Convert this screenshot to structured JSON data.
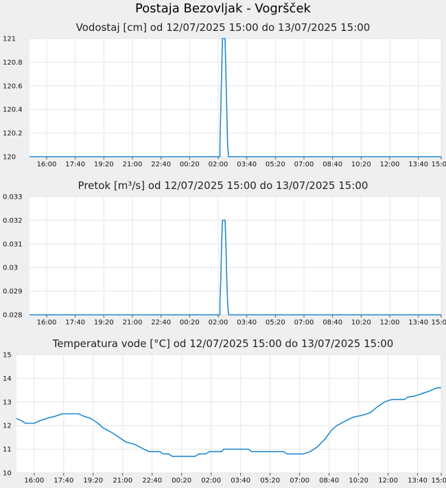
{
  "page": {
    "title": "Postaja Bezovljak - Vogršček"
  },
  "chart_data": [
    {
      "type": "line",
      "title": "Vodostaj [cm] od 12/07/2025 15:00 do 13/07/2025 15:00",
      "xlabel": "",
      "ylabel": "",
      "x_ticks": [
        "16:00",
        "17:40",
        "19:20",
        "21:00",
        "22:40",
        "00:20",
        "02:00",
        "03:40",
        "05:20",
        "07:00",
        "08:40",
        "10:20",
        "12:00",
        "13:40",
        "15:00"
      ],
      "y_ticks": [
        "120",
        "120.2",
        "120.4",
        "120.6",
        "120.8",
        "121"
      ],
      "ylim": [
        120,
        121
      ],
      "xlim_hours": [
        0,
        24
      ],
      "grid": true,
      "color": "#1e88d0",
      "series": [
        {
          "points": [
            [
              0,
              120
            ],
            [
              11.1,
              120
            ],
            [
              11.1,
              120.1
            ],
            [
              11.15,
              120.4
            ],
            [
              11.2,
              120.7
            ],
            [
              11.25,
              121
            ],
            [
              11.4,
              121
            ],
            [
              11.45,
              120.7
            ],
            [
              11.5,
              120.4
            ],
            [
              11.55,
              120.1
            ],
            [
              11.6,
              120
            ],
            [
              24,
              120
            ]
          ]
        }
      ]
    },
    {
      "type": "line",
      "title": "Pretok [m³/s] od 12/07/2025 15:00 do 13/07/2025 15:00",
      "xlabel": "",
      "ylabel": "",
      "x_ticks": [
        "16:00",
        "17:40",
        "19:20",
        "21:00",
        "22:40",
        "00:20",
        "02:00",
        "03:40",
        "05:20",
        "07:00",
        "08:40",
        "10:20",
        "12:00",
        "13:40",
        "15:00"
      ],
      "y_ticks": [
        "0.028",
        "0.029",
        "0.03",
        "0.031",
        "0.032",
        "0.033"
      ],
      "ylim": [
        0.028,
        0.033
      ],
      "xlim_hours": [
        0,
        24
      ],
      "grid": true,
      "color": "#1e88d0",
      "series": [
        {
          "points": [
            [
              0,
              0.028
            ],
            [
              11.1,
              0.028
            ],
            [
              11.1,
              0.0285
            ],
            [
              11.15,
              0.0295
            ],
            [
              11.2,
              0.031
            ],
            [
              11.25,
              0.032
            ],
            [
              11.4,
              0.032
            ],
            [
              11.45,
              0.031
            ],
            [
              11.5,
              0.0295
            ],
            [
              11.55,
              0.0285
            ],
            [
              11.6,
              0.028
            ],
            [
              24,
              0.028
            ]
          ]
        }
      ]
    },
    {
      "type": "line",
      "title": "Temperatura vode [°C] od 12/07/2025 15:00 do 13/07/2025 15:00",
      "xlabel": "",
      "ylabel": "",
      "x_ticks": [
        "16:00",
        "17:40",
        "19:20",
        "21:00",
        "22:40",
        "00:20",
        "02:00",
        "03:40",
        "05:20",
        "07:00",
        "08:40",
        "10:20",
        "12:00",
        "13:40",
        "15:00"
      ],
      "y_ticks": [
        "10",
        "11",
        "12",
        "13",
        "14",
        "15"
      ],
      "ylim": [
        10,
        15
      ],
      "xlim_hours": [
        0,
        24
      ],
      "grid": true,
      "color": "#1e88d0",
      "series": [
        {
          "points": [
            [
              0,
              12.3
            ],
            [
              0.3,
              12.2
            ],
            [
              0.5,
              12.1
            ],
            [
              1.0,
              12.1
            ],
            [
              1.3,
              12.2
            ],
            [
              1.7,
              12.3
            ],
            [
              2.2,
              12.4
            ],
            [
              2.6,
              12.5
            ],
            [
              3.5,
              12.5
            ],
            [
              3.8,
              12.4
            ],
            [
              4.2,
              12.3
            ],
            [
              4.6,
              12.1
            ],
            [
              4.9,
              11.9
            ],
            [
              5.4,
              11.7
            ],
            [
              5.8,
              11.5
            ],
            [
              6.2,
              11.3
            ],
            [
              6.7,
              11.2
            ],
            [
              7.2,
              11.0
            ],
            [
              7.5,
              10.9
            ],
            [
              8.1,
              10.9
            ],
            [
              8.3,
              10.8
            ],
            [
              8.6,
              10.8
            ],
            [
              8.8,
              10.7
            ],
            [
              10.1,
              10.7
            ],
            [
              10.3,
              10.8
            ],
            [
              10.7,
              10.8
            ],
            [
              10.9,
              10.9
            ],
            [
              11.6,
              10.9
            ],
            [
              11.7,
              11.0
            ],
            [
              13.1,
              11.0
            ],
            [
              13.3,
              10.9
            ],
            [
              15.1,
              10.9
            ],
            [
              15.3,
              10.8
            ],
            [
              16.2,
              10.8
            ],
            [
              16.6,
              10.9
            ],
            [
              17.0,
              11.1
            ],
            [
              17.4,
              11.4
            ],
            [
              17.8,
              11.8
            ],
            [
              18.1,
              12.0
            ],
            [
              18.6,
              12.2
            ],
            [
              19.0,
              12.35
            ],
            [
              19.6,
              12.45
            ],
            [
              20.0,
              12.55
            ],
            [
              20.4,
              12.8
            ],
            [
              20.8,
              13.0
            ],
            [
              21.2,
              13.1
            ],
            [
              21.9,
              13.1
            ],
            [
              22.1,
              13.2
            ],
            [
              22.5,
              13.25
            ],
            [
              22.9,
              13.35
            ],
            [
              23.3,
              13.45
            ],
            [
              23.6,
              13.55
            ],
            [
              23.8,
              13.6
            ],
            [
              24,
              13.6
            ]
          ]
        }
      ]
    }
  ]
}
